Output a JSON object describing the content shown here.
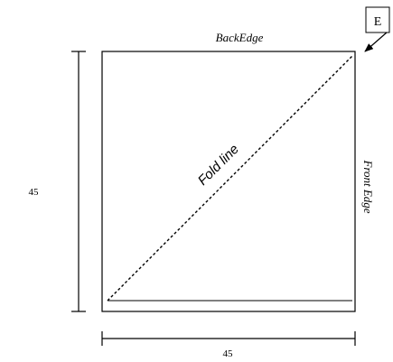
{
  "labels": {
    "back_edge": "BackEdge",
    "front_edge": "Front Edge",
    "fold_line": "Fold line",
    "corner_marker": "E",
    "height_dimension": "45",
    "width_dimension": "45"
  },
  "colors": {
    "line": "#000000",
    "background": "#ffffff"
  },
  "icons": {
    "corner_arrow": "arrow-icon"
  }
}
